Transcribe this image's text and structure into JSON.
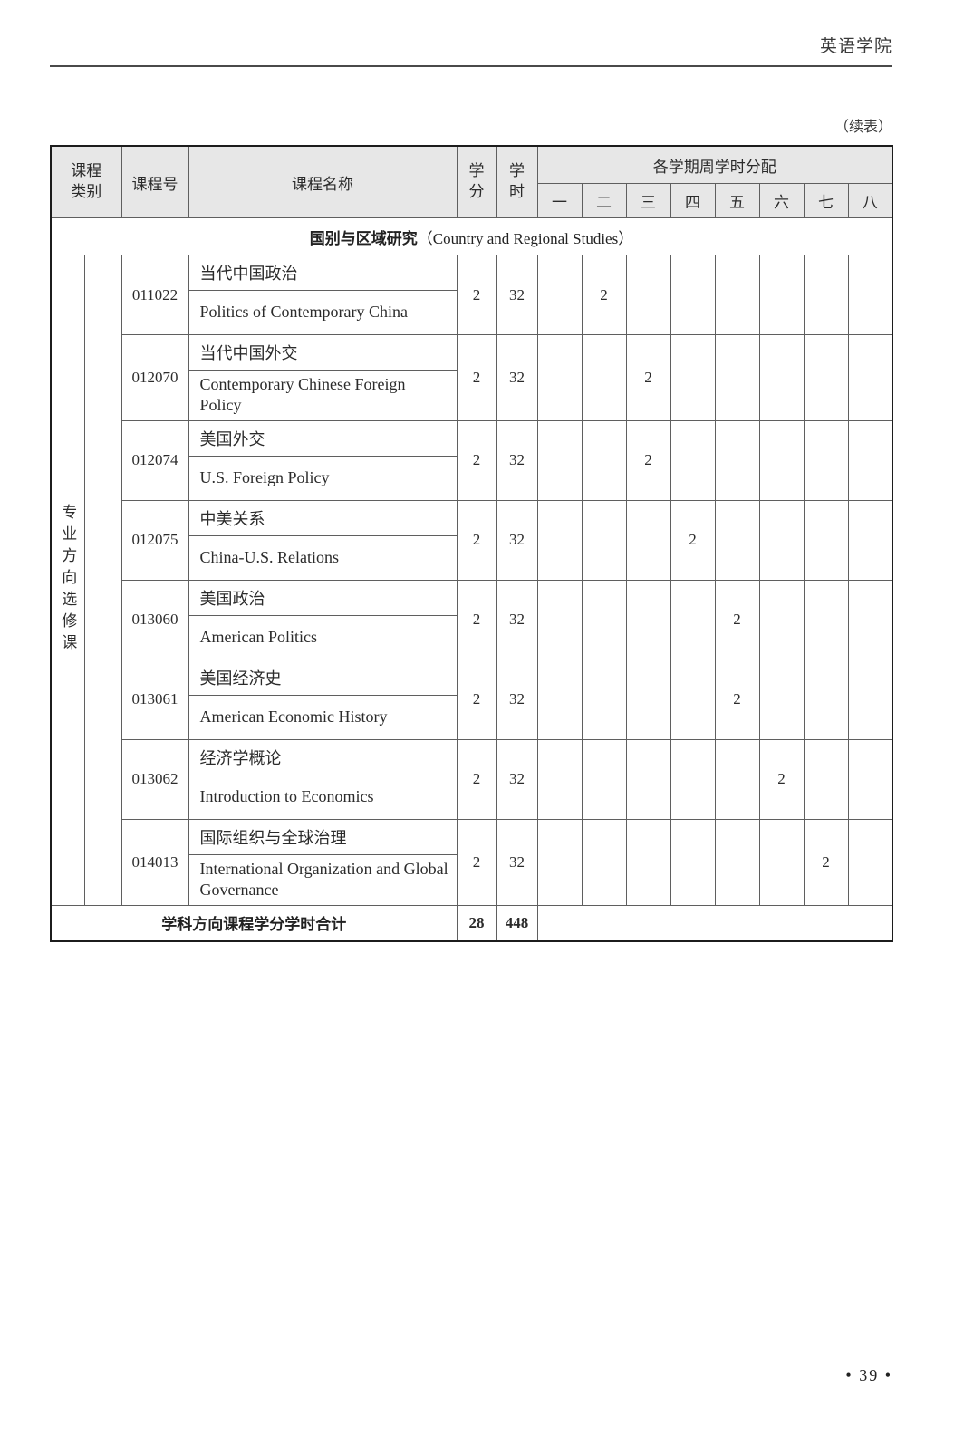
{
  "page": {
    "header_title": "英语学院",
    "continuation_note": "（续表）",
    "page_number": "• 39 •"
  },
  "table": {
    "headers": {
      "category": "课程\n类别",
      "course_no": "课程号",
      "course_name": "课程名称",
      "credits": "学\n分",
      "hours": "学\n时",
      "semester_group": "各学期周学时分配",
      "semesters": [
        "一",
        "二",
        "三",
        "四",
        "五",
        "六",
        "七",
        "八"
      ]
    },
    "section_title_zh": "国别与区域研究",
    "section_title_en": "（Country and Regional Studies）",
    "category_label": "专业方向选修课",
    "rows": [
      {
        "no": "011022",
        "zh": "当代中国政治",
        "en": "Politics of Contemporary China",
        "credits": "2",
        "hours": "32",
        "sem": [
          "",
          "2",
          "",
          "",
          "",
          "",
          "",
          ""
        ]
      },
      {
        "no": "012070",
        "zh": "当代中国外交",
        "en": "Contemporary Chinese Foreign Policy",
        "credits": "2",
        "hours": "32",
        "sem": [
          "",
          "",
          "2",
          "",
          "",
          "",
          "",
          ""
        ]
      },
      {
        "no": "012074",
        "zh": "美国外交",
        "en": "U.S. Foreign Policy",
        "credits": "2",
        "hours": "32",
        "sem": [
          "",
          "",
          "2",
          "",
          "",
          "",
          "",
          ""
        ]
      },
      {
        "no": "012075",
        "zh": "中美关系",
        "en": "China-U.S. Relations",
        "credits": "2",
        "hours": "32",
        "sem": [
          "",
          "",
          "",
          "2",
          "",
          "",
          "",
          ""
        ]
      },
      {
        "no": "013060",
        "zh": "美国政治",
        "en": "American Politics",
        "credits": "2",
        "hours": "32",
        "sem": [
          "",
          "",
          "",
          "",
          "2",
          "",
          "",
          ""
        ]
      },
      {
        "no": "013061",
        "zh": "美国经济史",
        "en": "American Economic History",
        "credits": "2",
        "hours": "32",
        "sem": [
          "",
          "",
          "",
          "",
          "2",
          "",
          "",
          ""
        ]
      },
      {
        "no": "013062",
        "zh": "经济学概论",
        "en": "Introduction to Economics",
        "credits": "2",
        "hours": "32",
        "sem": [
          "",
          "",
          "",
          "",
          "",
          "2",
          "",
          ""
        ]
      },
      {
        "no": "014013",
        "zh": "国际组织与全球治理",
        "en": "International Organization and Global Governance",
        "credits": "2",
        "hours": "32",
        "sem": [
          "",
          "",
          "",
          "",
          "",
          "",
          "2",
          ""
        ]
      }
    ],
    "total": {
      "label": "学科方向课程学分学时合计",
      "credits": "28",
      "hours": "448"
    }
  }
}
